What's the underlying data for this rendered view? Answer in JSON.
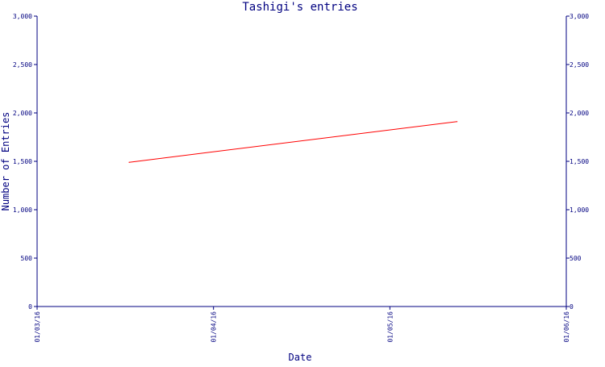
{
  "chart_data": {
    "type": "line",
    "title": "Tashigi's entries",
    "xlabel": "Date",
    "ylabel": "Number of Entries",
    "x_axis_kind": "date",
    "x_ticks": [
      "01/03/16",
      "01/04/16",
      "01/05/16",
      "01/06/16"
    ],
    "y_ticks": [
      "0",
      "500",
      "1,000",
      "1,500",
      "2,000",
      "2,500",
      "3,000"
    ],
    "ylim": [
      0,
      3000
    ],
    "xlim": [
      "2016-03-01",
      "2016-06-01"
    ],
    "grid": false,
    "right_axis_mirrors_left": true,
    "series": [
      {
        "color": "#ff0000",
        "points": [
          {
            "x": "2016-03-17",
            "y": 1490
          },
          {
            "x": "2016-05-13",
            "y": 1910
          }
        ]
      }
    ]
  },
  "colors": {
    "axis": "#000080",
    "text": "#000080",
    "series": "#ff0000",
    "background": "#ffffff"
  }
}
